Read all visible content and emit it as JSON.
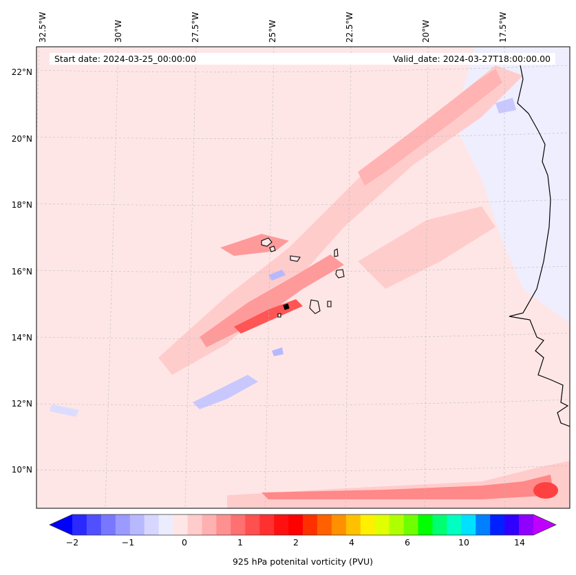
{
  "map": {
    "start_date": "Start date: 2024-03-25_00:00:00",
    "valid_date": "Valid_date: 2024-03-27T18:00:00.00",
    "lon_labels": [
      "32.5°W",
      "30°W",
      "27.5°W",
      "25°W",
      "22.5°W",
      "20°W",
      "17.5°W"
    ],
    "lat_labels": [
      "22°N",
      "20°N",
      "18°N",
      "16°N",
      "14°N",
      "12°N",
      "10°N"
    ],
    "background_color": "#ffe6e6",
    "land_color": "#f2f2ff",
    "coastline_color": "#000000"
  },
  "colorbar": {
    "label": "925 hPa potenital vorticity (PVU)",
    "ticks": [
      "−2",
      "−1",
      "0",
      "1",
      "2",
      "4",
      "6",
      "10",
      "14"
    ],
    "colors": [
      "#0000ff",
      "#2a2aff",
      "#5050ff",
      "#7878ff",
      "#9a9aff",
      "#b8b8ff",
      "#d6d6ff",
      "#ececff",
      "#ffe6e6",
      "#ffcccc",
      "#ffb0b0",
      "#ff9090",
      "#ff7070",
      "#ff5050",
      "#ff3030",
      "#ff1010",
      "#ff0000",
      "#ff3000",
      "#ff6000",
      "#ff9000",
      "#ffc000",
      "#fff000",
      "#e0ff00",
      "#b0ff00",
      "#70ff00",
      "#00ff00",
      "#00ff70",
      "#00ffc0",
      "#00e0ff",
      "#0080ff",
      "#0020ff",
      "#3000ff",
      "#9000ff",
      "#c000ff"
    ]
  }
}
